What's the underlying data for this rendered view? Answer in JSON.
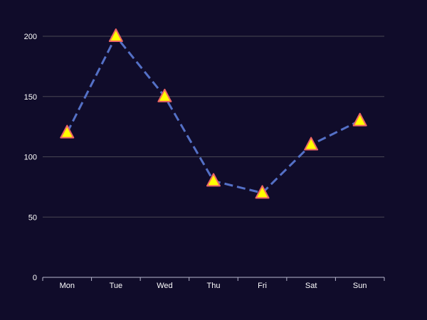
{
  "chart_data": {
    "type": "line",
    "categories": [
      "Mon",
      "Tue",
      "Wed",
      "Thu",
      "Fri",
      "Sat",
      "Sun"
    ],
    "series": [
      {
        "values": [
          120,
          200,
          150,
          80,
          70,
          110,
          130
        ],
        "line_style": "dashed",
        "marker": "triangle",
        "line_color": "#5470c6",
        "marker_fill": "#ffff00",
        "marker_stroke": "#ee6666"
      }
    ],
    "title": "",
    "xlabel": "",
    "ylabel": "",
    "ylim": [
      0,
      200
    ],
    "yticks": [
      0,
      50,
      100,
      150,
      200
    ],
    "grid": true,
    "legend": "none",
    "colors": {
      "background": "#100c2a",
      "gridline": "#484753",
      "axis": "#b9b8ce",
      "text": "#ffffff"
    }
  }
}
